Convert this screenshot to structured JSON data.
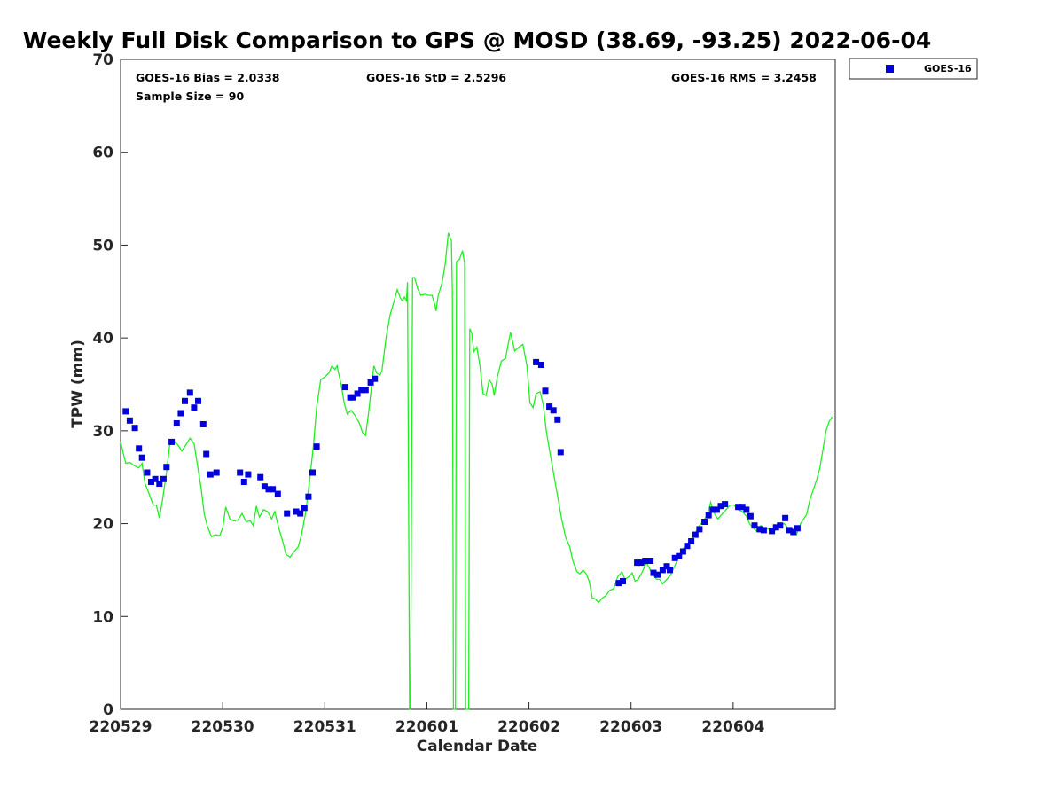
{
  "chart_data": {
    "type": "scatter",
    "title": "Weekly Full Disk Comparison to GPS @ MOSD (38.69, -93.25) 2022-06-04",
    "xlabel": "Calendar Date",
    "ylabel": "TPW (mm)",
    "xlim": [
      0,
      7
    ],
    "ylim": [
      0,
      70
    ],
    "xticks": [
      {
        "x": 0,
        "label": "220529"
      },
      {
        "x": 1,
        "label": "220530"
      },
      {
        "x": 2,
        "label": "220531"
      },
      {
        "x": 3,
        "label": "220601"
      },
      {
        "x": 4,
        "label": "220602"
      },
      {
        "x": 5,
        "label": "220603"
      },
      {
        "x": 6,
        "label": "220604"
      }
    ],
    "yticks": [
      0,
      10,
      20,
      30,
      40,
      50,
      60,
      70
    ],
    "stats": {
      "bias": "GOES-16 Bias = 2.0338",
      "std": "GOES-16 StD = 2.5296",
      "rms": "GOES-16 RMS = 3.2458",
      "sample": "Sample Size = 90"
    },
    "legend": {
      "label": "GOES-16",
      "position": "top-right outside"
    },
    "colors": {
      "goes": "#0000dd",
      "gps": "#22ee22"
    },
    "series": [
      {
        "name": "GOES-16",
        "kind": "points",
        "points": [
          [
            0.05,
            32.1
          ],
          [
            0.09,
            31.1
          ],
          [
            0.14,
            30.3
          ],
          [
            0.18,
            28.1
          ],
          [
            0.21,
            27.1
          ],
          [
            0.26,
            25.5
          ],
          [
            0.3,
            24.5
          ],
          [
            0.34,
            24.8
          ],
          [
            0.38,
            24.3
          ],
          [
            0.42,
            24.8
          ],
          [
            0.45,
            26.1
          ],
          [
            0.5,
            28.8
          ],
          [
            0.55,
            30.8
          ],
          [
            0.59,
            31.9
          ],
          [
            0.63,
            33.2
          ],
          [
            0.68,
            34.1
          ],
          [
            0.72,
            32.5
          ],
          [
            0.76,
            33.2
          ],
          [
            0.81,
            30.7
          ],
          [
            0.84,
            27.5
          ],
          [
            0.88,
            25.3
          ],
          [
            0.94,
            25.5
          ],
          [
            1.17,
            25.5
          ],
          [
            1.21,
            24.5
          ],
          [
            1.25,
            25.3
          ],
          [
            1.37,
            25.0
          ],
          [
            1.41,
            24.0
          ],
          [
            1.45,
            23.7
          ],
          [
            1.49,
            23.7
          ],
          [
            1.54,
            23.2
          ],
          [
            1.63,
            21.1
          ],
          [
            1.72,
            21.3
          ],
          [
            1.76,
            21.1
          ],
          [
            1.8,
            21.7
          ],
          [
            1.84,
            22.9
          ],
          [
            1.88,
            25.5
          ],
          [
            1.92,
            28.3
          ],
          [
            2.2,
            34.7
          ],
          [
            2.25,
            33.6
          ],
          [
            2.28,
            33.6
          ],
          [
            2.32,
            34.0
          ],
          [
            2.36,
            34.4
          ],
          [
            2.4,
            34.4
          ],
          [
            2.45,
            35.2
          ],
          [
            2.49,
            35.6
          ],
          [
            4.07,
            37.4
          ],
          [
            4.12,
            37.1
          ],
          [
            4.16,
            34.3
          ],
          [
            4.2,
            32.6
          ],
          [
            4.24,
            32.2
          ],
          [
            4.28,
            31.2
          ],
          [
            4.31,
            27.7
          ],
          [
            4.88,
            13.6
          ],
          [
            4.92,
            13.8
          ],
          [
            5.06,
            15.8
          ],
          [
            5.1,
            15.8
          ],
          [
            5.14,
            16.0
          ],
          [
            5.19,
            16.0
          ],
          [
            5.22,
            14.7
          ],
          [
            5.26,
            14.5
          ],
          [
            5.31,
            15.0
          ],
          [
            5.35,
            15.4
          ],
          [
            5.38,
            15.0
          ],
          [
            5.43,
            16.3
          ],
          [
            5.47,
            16.5
          ],
          [
            5.51,
            17.0
          ],
          [
            5.55,
            17.6
          ],
          [
            5.59,
            18.1
          ],
          [
            5.63,
            18.8
          ],
          [
            5.67,
            19.4
          ],
          [
            5.72,
            20.2
          ],
          [
            5.76,
            20.9
          ],
          [
            5.8,
            21.5
          ],
          [
            5.84,
            21.5
          ],
          [
            5.88,
            21.9
          ],
          [
            5.92,
            22.1
          ],
          [
            6.05,
            21.8
          ],
          [
            6.09,
            21.8
          ],
          [
            6.13,
            21.5
          ],
          [
            6.17,
            20.8
          ],
          [
            6.21,
            19.8
          ],
          [
            6.26,
            19.4
          ],
          [
            6.3,
            19.3
          ],
          [
            6.38,
            19.2
          ],
          [
            6.42,
            19.6
          ],
          [
            6.46,
            19.8
          ],
          [
            6.51,
            20.6
          ],
          [
            6.55,
            19.3
          ],
          [
            6.59,
            19.1
          ],
          [
            6.63,
            19.5
          ]
        ]
      },
      {
        "name": "GPS",
        "kind": "line",
        "points": [
          [
            0.0,
            28.8
          ],
          [
            0.05,
            26.5
          ],
          [
            0.09,
            26.6
          ],
          [
            0.14,
            26.2
          ],
          [
            0.18,
            26.0
          ],
          [
            0.21,
            26.5
          ],
          [
            0.24,
            24.3
          ],
          [
            0.28,
            23.2
          ],
          [
            0.32,
            22.0
          ],
          [
            0.35,
            22.0
          ],
          [
            0.38,
            20.6
          ],
          [
            0.41,
            22.5
          ],
          [
            0.45,
            25.5
          ],
          [
            0.48,
            28.4
          ],
          [
            0.52,
            28.9
          ],
          [
            0.56,
            28.5
          ],
          [
            0.6,
            27.8
          ],
          [
            0.64,
            28.5
          ],
          [
            0.68,
            29.2
          ],
          [
            0.72,
            28.6
          ],
          [
            0.75,
            26.5
          ],
          [
            0.79,
            23.7
          ],
          [
            0.82,
            21.0
          ],
          [
            0.85,
            19.7
          ],
          [
            0.89,
            18.6
          ],
          [
            0.93,
            18.8
          ],
          [
            0.97,
            18.7
          ],
          [
            1.0,
            19.5
          ],
          [
            1.03,
            21.8
          ],
          [
            1.07,
            20.5
          ],
          [
            1.11,
            20.3
          ],
          [
            1.15,
            20.4
          ],
          [
            1.19,
            21.1
          ],
          [
            1.23,
            20.2
          ],
          [
            1.27,
            20.3
          ],
          [
            1.3,
            19.8
          ],
          [
            1.33,
            21.9
          ],
          [
            1.36,
            20.7
          ],
          [
            1.4,
            21.5
          ],
          [
            1.44,
            21.3
          ],
          [
            1.48,
            20.5
          ],
          [
            1.51,
            21.3
          ],
          [
            1.55,
            19.5
          ],
          [
            1.59,
            18.0
          ],
          [
            1.62,
            16.7
          ],
          [
            1.66,
            16.4
          ],
          [
            1.7,
            17.0
          ],
          [
            1.74,
            17.5
          ],
          [
            1.77,
            18.7
          ],
          [
            1.81,
            21.0
          ],
          [
            1.85,
            24.5
          ],
          [
            1.89,
            28.5
          ],
          [
            1.92,
            32.5
          ],
          [
            1.96,
            35.5
          ],
          [
            2.0,
            35.8
          ],
          [
            2.04,
            36.2
          ],
          [
            2.07,
            37.0
          ],
          [
            2.1,
            36.6
          ],
          [
            2.12,
            37.0
          ],
          [
            2.16,
            35.0
          ],
          [
            2.19,
            33.0
          ],
          [
            2.22,
            31.8
          ],
          [
            2.26,
            32.2
          ],
          [
            2.3,
            31.6
          ],
          [
            2.34,
            30.8
          ],
          [
            2.37,
            29.8
          ],
          [
            2.4,
            29.5
          ],
          [
            2.43,
            32.0
          ],
          [
            2.46,
            35.0
          ],
          [
            2.48,
            37.0
          ],
          [
            2.51,
            36.2
          ],
          [
            2.54,
            36.0
          ],
          [
            2.56,
            36.5
          ],
          [
            2.6,
            40.0
          ],
          [
            2.64,
            42.5
          ],
          [
            2.68,
            44.0
          ],
          [
            2.71,
            45.2
          ],
          [
            2.74,
            44.3
          ],
          [
            2.76,
            44.0
          ],
          [
            2.78,
            44.4
          ],
          [
            2.8,
            44.0
          ],
          [
            2.81,
            46.0
          ],
          [
            2.82,
            25.0
          ],
          [
            2.83,
            0.0
          ],
          [
            2.84,
            0.0
          ],
          [
            2.85,
            25.0
          ],
          [
            2.86,
            46.5
          ],
          [
            2.88,
            46.5
          ],
          [
            2.91,
            45.3
          ],
          [
            2.94,
            44.6
          ],
          [
            2.98,
            44.7
          ],
          [
            3.01,
            44.6
          ],
          [
            3.05,
            44.6
          ],
          [
            3.08,
            43.5
          ],
          [
            3.09,
            42.9
          ],
          [
            3.11,
            44.5
          ],
          [
            3.15,
            46.0
          ],
          [
            3.18,
            48.0
          ],
          [
            3.21,
            51.3
          ],
          [
            3.24,
            50.5
          ],
          [
            3.25,
            45.0
          ],
          [
            3.26,
            0.0
          ],
          [
            3.28,
            0.0
          ],
          [
            3.29,
            48.2
          ],
          [
            3.32,
            48.5
          ],
          [
            3.35,
            49.4
          ],
          [
            3.37,
            48.0
          ],
          [
            3.38,
            0.0
          ],
          [
            3.41,
            0.0
          ],
          [
            3.42,
            41.0
          ],
          [
            3.44,
            40.5
          ],
          [
            3.46,
            38.5
          ],
          [
            3.49,
            39.0
          ],
          [
            3.52,
            37.0
          ],
          [
            3.55,
            34.0
          ],
          [
            3.58,
            33.8
          ],
          [
            3.61,
            35.5
          ],
          [
            3.64,
            35.0
          ],
          [
            3.66,
            33.8
          ],
          [
            3.69,
            35.8
          ],
          [
            3.73,
            37.5
          ],
          [
            3.77,
            37.8
          ],
          [
            3.8,
            39.5
          ],
          [
            3.82,
            40.6
          ],
          [
            3.86,
            38.6
          ],
          [
            3.9,
            39.0
          ],
          [
            3.94,
            39.3
          ],
          [
            3.98,
            37.0
          ],
          [
            4.01,
            33.0
          ],
          [
            4.04,
            32.5
          ],
          [
            4.07,
            34.0
          ],
          [
            4.11,
            34.2
          ],
          [
            4.14,
            32.8
          ],
          [
            4.17,
            30.0
          ],
          [
            4.2,
            28.0
          ],
          [
            4.24,
            25.5
          ],
          [
            4.28,
            23.0
          ],
          [
            4.32,
            20.5
          ],
          [
            4.36,
            18.5
          ],
          [
            4.4,
            17.5
          ],
          [
            4.43,
            16.0
          ],
          [
            4.47,
            14.8
          ],
          [
            4.5,
            14.6
          ],
          [
            4.53,
            15.0
          ],
          [
            4.56,
            14.6
          ],
          [
            4.59,
            13.8
          ],
          [
            4.62,
            12.0
          ],
          [
            4.65,
            11.9
          ],
          [
            4.68,
            11.5
          ],
          [
            4.72,
            12.0
          ],
          [
            4.75,
            12.2
          ],
          [
            4.79,
            12.8
          ],
          [
            4.83,
            13.0
          ],
          [
            4.87,
            14.3
          ],
          [
            4.91,
            14.8
          ],
          [
            4.94,
            14.0
          ],
          [
            4.98,
            14.3
          ],
          [
            5.01,
            14.7
          ],
          [
            5.04,
            13.8
          ],
          [
            5.07,
            14.0
          ],
          [
            5.11,
            14.8
          ],
          [
            5.15,
            15.8
          ],
          [
            5.18,
            15.2
          ],
          [
            5.21,
            14.5
          ],
          [
            5.25,
            14.0
          ],
          [
            5.28,
            14.0
          ],
          [
            5.31,
            13.5
          ],
          [
            5.35,
            14.0
          ],
          [
            5.39,
            14.5
          ],
          [
            5.43,
            15.5
          ],
          [
            5.47,
            16.5
          ],
          [
            5.51,
            17.3
          ],
          [
            5.55,
            17.8
          ],
          [
            5.59,
            18.2
          ],
          [
            5.63,
            19.0
          ],
          [
            5.67,
            19.8
          ],
          [
            5.71,
            20.3
          ],
          [
            5.75,
            21.0
          ],
          [
            5.78,
            22.3
          ],
          [
            5.81,
            21.2
          ],
          [
            5.85,
            20.5
          ],
          [
            5.89,
            21.0
          ],
          [
            5.93,
            21.5
          ],
          [
            5.97,
            22.0
          ],
          [
            6.01,
            22.0
          ],
          [
            6.05,
            21.5
          ],
          [
            6.09,
            21.3
          ],
          [
            6.13,
            20.8
          ],
          [
            6.16,
            20.0
          ],
          [
            6.19,
            19.6
          ],
          [
            6.23,
            19.2
          ],
          [
            6.27,
            19.8
          ],
          [
            6.31,
            19.5
          ],
          [
            6.35,
            19.4
          ],
          [
            6.39,
            19.0
          ],
          [
            6.42,
            19.4
          ],
          [
            6.46,
            19.8
          ],
          [
            6.5,
            20.0
          ],
          [
            6.54,
            19.5
          ],
          [
            6.58,
            19.0
          ],
          [
            6.62,
            18.8
          ],
          [
            6.66,
            20.0
          ],
          [
            6.69,
            20.5
          ],
          [
            6.72,
            21.0
          ],
          [
            6.75,
            22.5
          ],
          [
            6.78,
            23.5
          ],
          [
            6.82,
            24.8
          ],
          [
            6.85,
            26.0
          ],
          [
            6.88,
            28.0
          ],
          [
            6.91,
            30.0
          ],
          [
            6.94,
            31.0
          ],
          [
            6.97,
            31.5
          ]
        ]
      }
    ]
  }
}
